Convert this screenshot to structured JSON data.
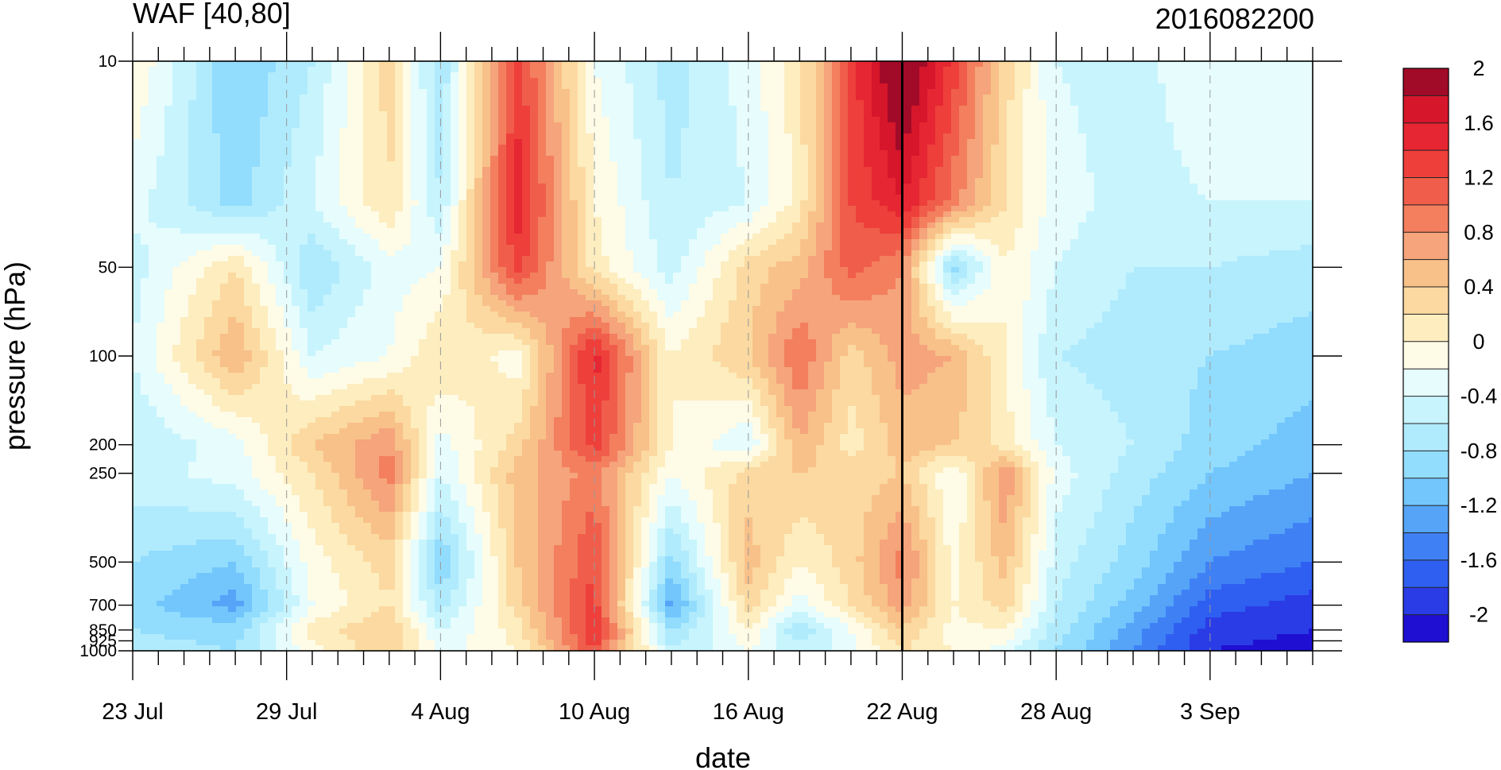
{
  "chart_data": {
    "type": "heatmap",
    "title": "WAF [40,80]",
    "subtitle": "2016082200",
    "xlabel": "date",
    "ylabel": "pressure (hPa)",
    "y_scale": "log",
    "y_inverted": true,
    "xlim": [
      "2016-07-23",
      "2016-09-07"
    ],
    "ylim": [
      1000,
      10
    ],
    "x_tick_labels": [
      "23 Jul",
      "29 Jul",
      "4 Aug",
      "10 Aug",
      "16 Aug",
      "22 Aug",
      "28 Aug",
      "3 Sep"
    ],
    "x_tick_dates": [
      "2016-07-23",
      "2016-07-29",
      "2016-08-04",
      "2016-08-10",
      "2016-08-16",
      "2016-08-22",
      "2016-08-28",
      "2016-09-03"
    ],
    "y_ticks": [
      10,
      50,
      100,
      200,
      250,
      500,
      700,
      850,
      925,
      1000
    ],
    "y_tick_labels": [
      "10",
      "50",
      "100",
      "200",
      "250",
      "500",
      "700",
      "850",
      "925",
      "1000"
    ],
    "marker_date": "2016-08-22",
    "contour_levels": [
      -2.2,
      -2,
      -1.8,
      -1.6,
      -1.4,
      -1.2,
      -1,
      -0.8,
      -0.6,
      -0.4,
      -0.2,
      0,
      0.2,
      0.4,
      0.6,
      0.8,
      1,
      1.2,
      1.4,
      1.6,
      1.8,
      2,
      2.2
    ],
    "colorbar_labels": [
      "2",
      "1.6",
      "1.2",
      "0.8",
      "0.4",
      "0",
      "-0.4",
      "-0.8",
      "-1.2",
      "-1.6",
      "-2"
    ],
    "colorbar_label_values": [
      2,
      1.6,
      1.2,
      0.8,
      0.4,
      0,
      -0.4,
      -0.8,
      -1.2,
      -1.6,
      -2
    ],
    "colors": [
      "#1e0fd2",
      "#2a3ce6",
      "#2f5ff0",
      "#3f81f5",
      "#55a4f8",
      "#72c6fc",
      "#92dcfd",
      "#b0ebfd",
      "#c8f4fd",
      "#e6fcfd",
      "#fefbe6",
      "#fdedbf",
      "#fbd9a0",
      "#f8c189",
      "#f5a47c",
      "#f37f5e",
      "#f05e4b",
      "#ee3f3b",
      "#e62632",
      "#d6162b",
      "#a10b28"
    ],
    "grid_x": [
      "2016-07-23",
      "2016-07-27",
      "2016-07-30",
      "2016-08-02",
      "2016-08-04",
      "2016-08-07",
      "2016-08-10",
      "2016-08-13",
      "2016-08-16",
      "2016-08-18",
      "2016-08-20",
      "2016-08-22",
      "2016-08-24",
      "2016-08-26",
      "2016-08-28",
      "2016-08-31",
      "2016-09-03",
      "2016-09-07"
    ],
    "grid_p": [
      10,
      30,
      50,
      100,
      200,
      250,
      500,
      700,
      850,
      1000
    ],
    "values": [
      [
        0.0,
        -1.0,
        -0.6,
        0.3,
        -0.8,
        1.3,
        -0.2,
        -0.7,
        -0.3,
        0.1,
        1.3,
        2.2,
        1.3,
        0.3,
        -0.4,
        -0.5,
        -0.2,
        -0.3
      ],
      [
        -0.3,
        -0.9,
        -0.4,
        0.2,
        -0.6,
        1.5,
        0.0,
        -0.6,
        -0.4,
        0.1,
        1.2,
        1.6,
        0.9,
        0.2,
        -0.3,
        -0.5,
        -0.4,
        -0.4
      ],
      [
        -0.5,
        0.2,
        -0.8,
        -0.3,
        -0.2,
        1.3,
        0.1,
        -0.5,
        0.3,
        0.5,
        1.1,
        0.8,
        -0.9,
        0.0,
        -0.4,
        -0.6,
        -0.6,
        -0.7
      ],
      [
        -0.4,
        0.6,
        -0.4,
        -0.2,
        0.2,
        -0.1,
        1.5,
        0.0,
        0.4,
        1.0,
        0.3,
        0.7,
        0.6,
        0.0,
        -0.6,
        -0.7,
        -0.8,
        -0.9
      ],
      [
        -0.6,
        -0.3,
        0.4,
        0.8,
        -0.3,
        0.3,
        1.3,
        0.0,
        -0.4,
        0.6,
        0.1,
        0.5,
        0.4,
        0.1,
        -0.4,
        -0.6,
        -0.9,
        -1.1
      ],
      [
        -0.5,
        -0.3,
        0.2,
        0.9,
        -0.4,
        0.5,
        0.9,
        -0.2,
        0.3,
        0.4,
        0.3,
        0.4,
        -0.2,
        0.8,
        -0.3,
        -0.7,
        -1.0,
        -1.2
      ],
      [
        -0.8,
        -1.0,
        -0.1,
        0.3,
        -1.0,
        0.4,
        1.2,
        -0.9,
        0.5,
        0.0,
        0.3,
        0.9,
        -0.1,
        0.5,
        -0.5,
        -0.9,
        -1.4,
        -1.6
      ],
      [
        -0.9,
        -1.3,
        -0.2,
        0.2,
        -0.7,
        0.3,
        1.3,
        -1.3,
        0.3,
        -0.3,
        0.2,
        0.7,
        0.0,
        0.3,
        -0.6,
        -1.1,
        -1.7,
        -1.9
      ],
      [
        -0.8,
        -0.9,
        0.1,
        0.4,
        -0.4,
        0.1,
        1.4,
        -0.8,
        0.0,
        -0.8,
        -0.2,
        0.4,
        -0.1,
        0.0,
        -0.7,
        -1.3,
        -1.9,
        -2.0
      ],
      [
        -0.7,
        -0.8,
        -0.1,
        0.4,
        -0.3,
        0.0,
        1.2,
        -0.6,
        -0.2,
        -0.5,
        -0.3,
        0.2,
        0.0,
        -0.3,
        -0.8,
        -1.4,
        -2.0,
        -2.1
      ]
    ]
  }
}
